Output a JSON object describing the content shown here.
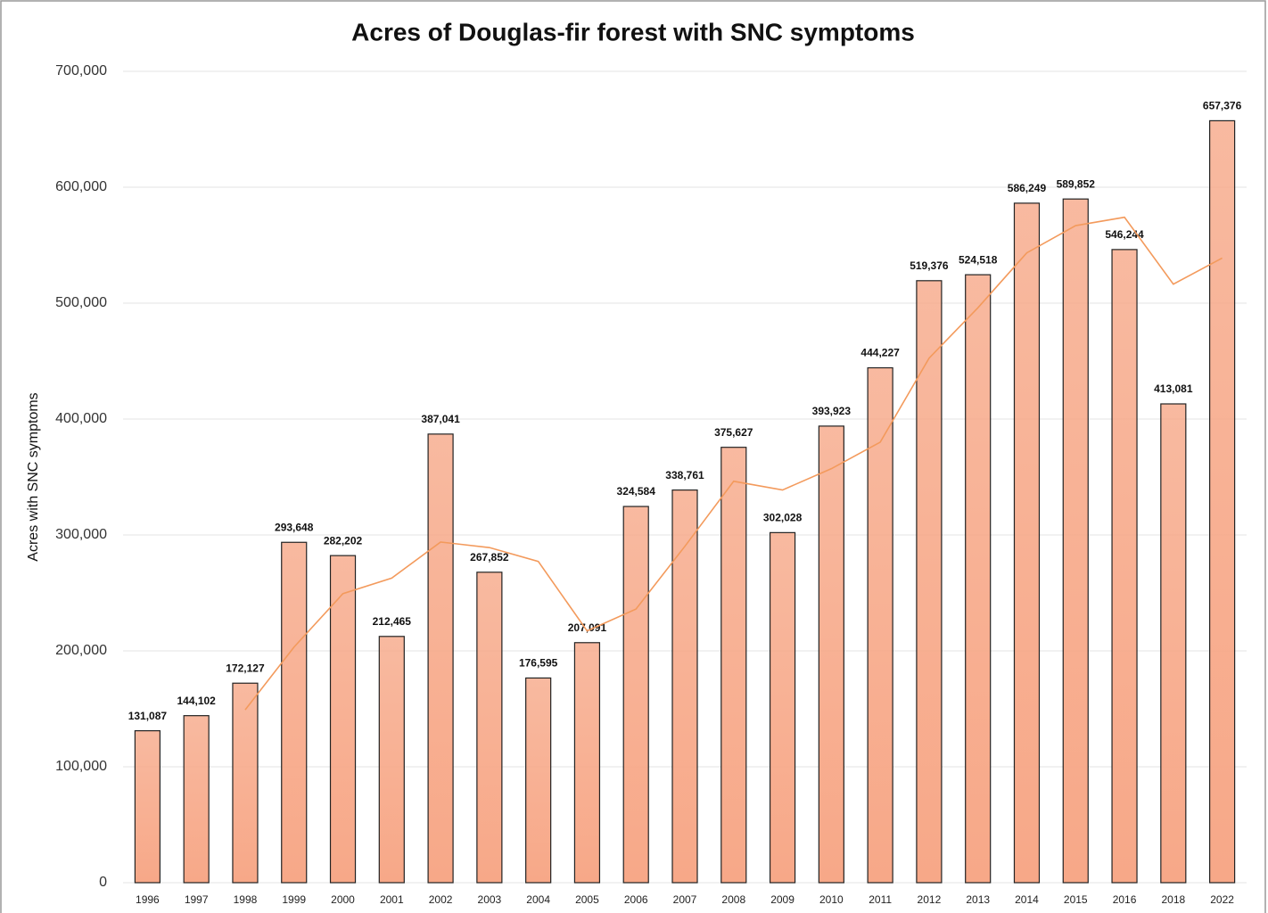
{
  "chart_data": {
    "type": "bar",
    "title": "Acres of Douglas-fir forest with SNC symptoms",
    "y_label": "Acres with SNC symptoms",
    "categories": [
      "1996",
      "1997",
      "1998",
      "1999",
      "2000",
      "2001",
      "2002",
      "2003",
      "2004",
      "2005",
      "2006",
      "2007",
      "2008",
      "2009",
      "2010",
      "2011",
      "2012",
      "2013",
      "2014",
      "2015",
      "2016",
      "2018",
      "2022"
    ],
    "values": [
      131087,
      144102,
      172127,
      293648,
      282202,
      212465,
      387041,
      267852,
      176595,
      207091,
      324584,
      338761,
      375627,
      302028,
      393923,
      444227,
      519376,
      524518,
      586249,
      589852,
      546244,
      413081,
      657376
    ],
    "value_labels": [
      "131,087",
      "144,102",
      "172,127",
      "293,648",
      "282,202",
      "212,465",
      "387,041",
      "267,852",
      "176,595",
      "207,091",
      "324,584",
      "338,761",
      "375,627",
      "302,028",
      "393,923",
      "444,227",
      "519,376",
      "524,518",
      "586,249",
      "589,852",
      "546,244",
      "413,081",
      "657,376"
    ],
    "color": "#f7a888",
    "trend": {
      "color": "#f39a5c",
      "values": [
        null,
        null,
        149105,
        203292,
        249326,
        262772,
        293903,
        289119,
        277163,
        217179,
        236090,
        290145,
        346324,
        338805,
        357193,
        380059,
        452509,
        496040,
        543381,
        566873,
        574115,
        516392,
        538900
      ]
    },
    "ylim": [
      0,
      700000
    ],
    "yticks": [
      0,
      {
        "value": 100000,
        "label": "100,000"
      },
      {
        "value": 200000,
        "label": "200,000"
      },
      {
        "value": 300000,
        "label": "300,000"
      },
      {
        "value": 400000,
        "label": "400,000"
      },
      {
        "value": 500000,
        "label": "500,000"
      },
      {
        "value": 600000,
        "label": "600,000"
      },
      {
        "value": 700000,
        "label": "700,000"
      }
    ],
    "grid": true
  }
}
